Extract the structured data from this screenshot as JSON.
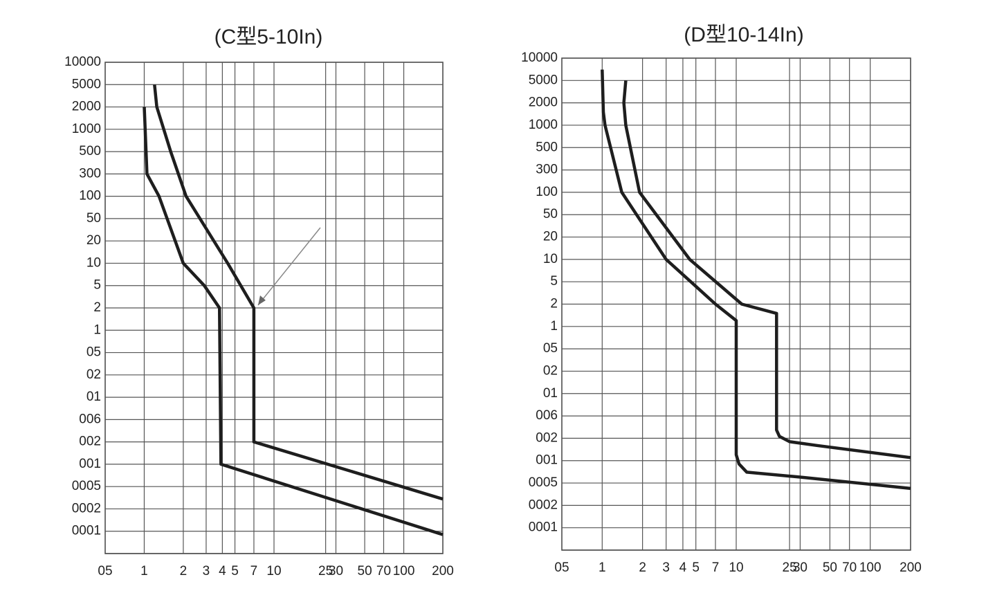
{
  "chart_data": [
    {
      "type": "line",
      "title": "(C型5-10In)",
      "log_x": true,
      "grid": true,
      "color": "#1e1e1e",
      "xlim": [
        0.5,
        200
      ],
      "xticks": [
        {
          "value": 0.5,
          "label": "05"
        },
        1,
        2,
        3,
        4,
        5,
        7,
        10,
        25,
        30,
        50,
        70,
        100,
        200
      ],
      "ylim": [
        0.0005,
        10000
      ],
      "yticks": [
        10000,
        5000,
        2000,
        1000,
        500,
        300,
        100,
        50,
        20,
        10,
        5,
        2,
        1,
        {
          "value": 0.5,
          "label": "05"
        },
        {
          "value": 0.2,
          "label": "02"
        },
        {
          "value": 0.1,
          "label": "01"
        },
        {
          "value": 0.06,
          "label": "006"
        },
        {
          "value": 0.02,
          "label": "002"
        },
        {
          "value": 0.01,
          "label": "001"
        },
        {
          "value": 0.005,
          "label": "0005"
        },
        {
          "value": 0.002,
          "label": "0002"
        },
        {
          "value": 0.001,
          "label": "0001"
        }
      ],
      "series": [
        {
          "color": "#1e1e1e",
          "x": [
            1,
            1.05,
            1.3,
            2,
            2.9,
            3.8,
            3.9,
            200
          ],
          "values": [
            2000,
            300,
            100,
            10,
            5,
            2,
            0.01,
            0.0009
          ]
        },
        {
          "color": "#1e1e1e",
          "x": [
            1.2,
            1.25,
            1.6,
            2.1,
            4.4,
            7,
            7,
            200
          ],
          "values": [
            5000,
            2000,
            500,
            100,
            10,
            2,
            0.02,
            0.003
          ]
        }
      ]
    },
    {
      "type": "line",
      "title": "(D型10-14In)",
      "log_x": true,
      "grid": true,
      "color": "#1e1e1e",
      "xlim": [
        0.5,
        200
      ],
      "xticks": [
        {
          "value": 0.5,
          "label": "05"
        },
        1,
        2,
        3,
        4,
        5,
        7,
        10,
        25,
        30,
        50,
        70,
        100,
        200
      ],
      "ylim": [
        0.0005,
        10000
      ],
      "yticks": [
        10000,
        5000,
        2000,
        1000,
        500,
        300,
        100,
        50,
        20,
        10,
        5,
        2,
        1,
        {
          "value": 0.5,
          "label": "05"
        },
        {
          "value": 0.2,
          "label": "02"
        },
        {
          "value": 0.1,
          "label": "01"
        },
        {
          "value": 0.06,
          "label": "006"
        },
        {
          "value": 0.02,
          "label": "002"
        },
        {
          "value": 0.01,
          "label": "001"
        },
        {
          "value": 0.005,
          "label": "0005"
        },
        {
          "value": 0.002,
          "label": "0002"
        },
        {
          "value": 0.001,
          "label": "0001"
        }
      ],
      "series": [
        {
          "color": "#1e1e1e",
          "x": [
            1,
            1.02,
            1.05,
            1.4,
            3,
            7,
            10,
            10,
            10.5,
            12,
            30,
            200
          ],
          "values": [
            7000,
            1500,
            1000,
            100,
            10,
            2,
            1.2,
            0.012,
            0.009,
            0.007,
            0.006,
            0.004
          ]
        },
        {
          "color": "#1e1e1e",
          "x": [
            1.5,
            1.45,
            1.5,
            1.9,
            4.5,
            11,
            20,
            20,
            21,
            25,
            40,
            200
          ],
          "values": [
            5000,
            2000,
            1000,
            100,
            10,
            2,
            1.5,
            0.03,
            0.022,
            0.018,
            0.016,
            0.011
          ]
        }
      ]
    }
  ]
}
